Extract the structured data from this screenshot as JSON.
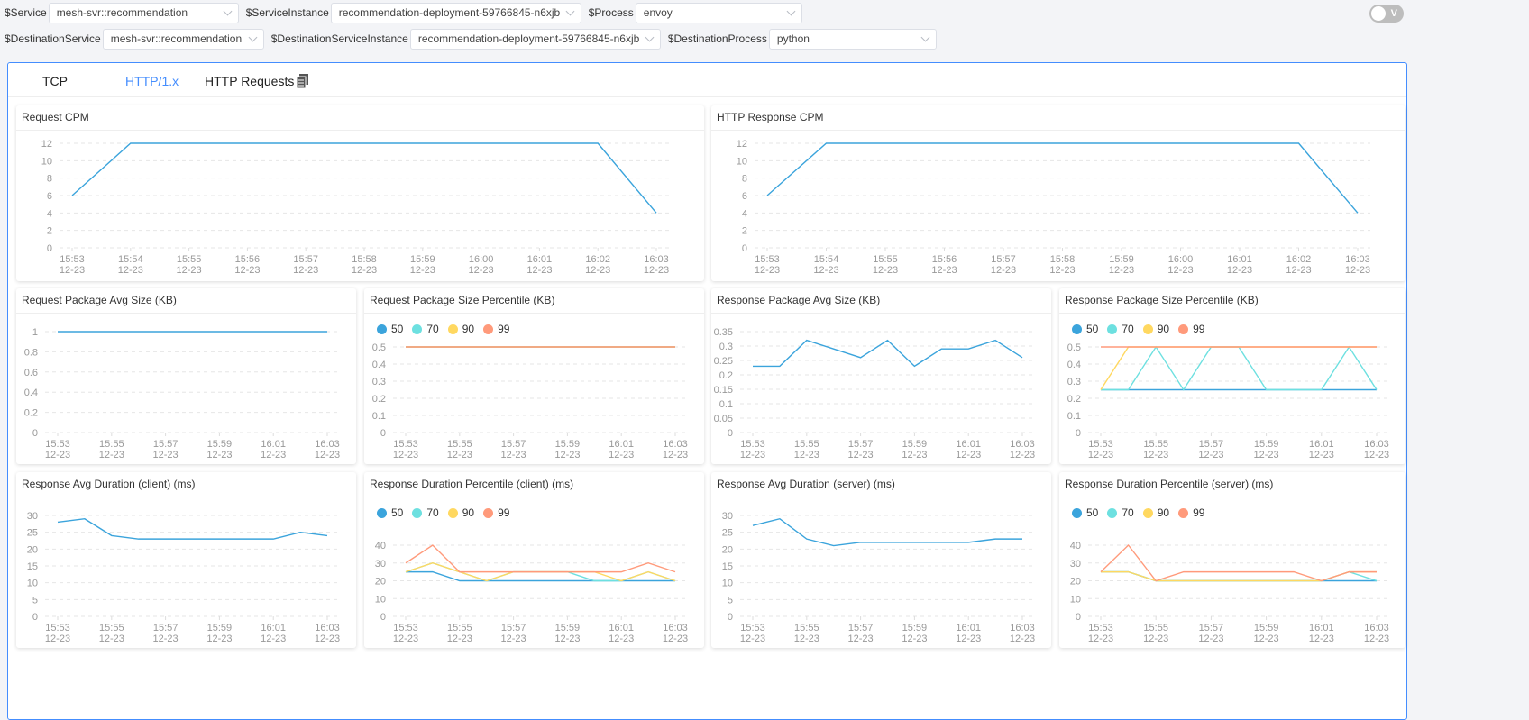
{
  "filters": {
    "row1": [
      {
        "label": "$Service",
        "value": "mesh-svr::recommendation"
      },
      {
        "label": "$ServiceInstance",
        "value": "recommendation-deployment-59766845-n6xjb"
      },
      {
        "label": "$Process",
        "value": "envoy"
      }
    ],
    "row2": [
      {
        "label": "$DestinationService",
        "value": "mesh-svr::recommendation"
      },
      {
        "label": "$DestinationServiceInstance",
        "value": "recommendation-deployment-59766845-n6xjb"
      },
      {
        "label": "$DestinationProcess",
        "value": "python"
      }
    ],
    "toggle_label": "V",
    "toggle_on": false
  },
  "tabs": [
    {
      "label": "TCP",
      "active": false
    },
    {
      "label": "HTTP/1.x",
      "active": true
    },
    {
      "label": "HTTP Requests",
      "active": false,
      "icon": "copy-icon"
    }
  ],
  "colors": {
    "accent": "#448dfe",
    "p50": "#3ba4dc",
    "p70": "#6de0e0",
    "p90": "#ffd860",
    "p99": "#ff9a7b",
    "line": "#3ba4dc"
  },
  "chart_data": [
    {
      "type": "line",
      "title": "Request CPM",
      "x": [
        "15:53",
        "15:54",
        "15:55",
        "15:56",
        "15:57",
        "15:58",
        "15:59",
        "16:00",
        "16:01",
        "16:02",
        "16:03"
      ],
      "date": "12-23",
      "ylim": [
        0,
        12
      ],
      "yticks": [
        0,
        2,
        4,
        6,
        8,
        10,
        12
      ],
      "xtick_step": 1,
      "series": [
        {
          "values": [
            6,
            12,
            12,
            12,
            12,
            12,
            12,
            12,
            12,
            12,
            4
          ]
        }
      ]
    },
    {
      "type": "line",
      "title": "HTTP Response CPM",
      "x": [
        "15:53",
        "15:54",
        "15:55",
        "15:56",
        "15:57",
        "15:58",
        "15:59",
        "16:00",
        "16:01",
        "16:02",
        "16:03"
      ],
      "date": "12-23",
      "ylim": [
        0,
        12
      ],
      "yticks": [
        0,
        2,
        4,
        6,
        8,
        10,
        12
      ],
      "xtick_step": 1,
      "series": [
        {
          "values": [
            6,
            12,
            12,
            12,
            12,
            12,
            12,
            12,
            12,
            12,
            4
          ]
        }
      ]
    },
    {
      "type": "line",
      "title": "Request Package Avg Size (KB)",
      "x": [
        "15:53",
        "15:54",
        "15:55",
        "15:56",
        "15:57",
        "15:58",
        "15:59",
        "16:00",
        "16:01",
        "16:02",
        "16:03"
      ],
      "date": "12-23",
      "ylim": [
        0,
        1
      ],
      "yticks": [
        0,
        0.2,
        0.4,
        0.6,
        0.8,
        1
      ],
      "xtick_step": 2,
      "series": [
        {
          "values": [
            1,
            1,
            1,
            1,
            1,
            1,
            1,
            1,
            1,
            1,
            1
          ]
        }
      ]
    },
    {
      "type": "line",
      "title": "Request Package Size Percentile (KB)",
      "x": [
        "15:53",
        "15:54",
        "15:55",
        "15:56",
        "15:57",
        "15:58",
        "15:59",
        "16:00",
        "16:01",
        "16:02",
        "16:03"
      ],
      "date": "12-23",
      "ylim": [
        0,
        0.5
      ],
      "yticks": [
        0,
        0.1,
        0.2,
        0.3,
        0.4,
        0.5
      ],
      "xtick_step": 2,
      "legend": "top-left",
      "series": [
        {
          "name": "50",
          "values": [
            0.5,
            0.5,
            0.5,
            0.5,
            0.5,
            0.5,
            0.5,
            0.5,
            0.5,
            0.5,
            0.5
          ]
        },
        {
          "name": "70",
          "values": [
            0.5,
            0.5,
            0.5,
            0.5,
            0.5,
            0.5,
            0.5,
            0.5,
            0.5,
            0.5,
            0.5
          ]
        },
        {
          "name": "90",
          "values": [
            0.5,
            0.5,
            0.5,
            0.5,
            0.5,
            0.5,
            0.5,
            0.5,
            0.5,
            0.5,
            0.5
          ]
        },
        {
          "name": "99",
          "values": [
            0.5,
            0.5,
            0.5,
            0.5,
            0.5,
            0.5,
            0.5,
            0.5,
            0.5,
            0.5,
            0.5
          ]
        }
      ]
    },
    {
      "type": "line",
      "title": "Response Package Avg Size (KB)",
      "x": [
        "15:53",
        "15:54",
        "15:55",
        "15:56",
        "15:57",
        "15:58",
        "15:59",
        "16:00",
        "16:01",
        "16:02",
        "16:03"
      ],
      "date": "12-23",
      "ylim": [
        0,
        0.35
      ],
      "yticks": [
        0,
        0.05,
        0.1,
        0.15,
        0.2,
        0.25,
        0.3,
        0.35
      ],
      "xtick_step": 2,
      "series": [
        {
          "values": [
            0.23,
            0.23,
            0.32,
            0.29,
            0.26,
            0.32,
            0.23,
            0.29,
            0.29,
            0.32,
            0.26
          ]
        }
      ]
    },
    {
      "type": "line",
      "title": "Response Package Size Percentile (KB)",
      "x": [
        "15:53",
        "15:54",
        "15:55",
        "15:56",
        "15:57",
        "15:58",
        "15:59",
        "16:00",
        "16:01",
        "16:02",
        "16:03"
      ],
      "date": "12-23",
      "ylim": [
        0,
        0.5
      ],
      "yticks": [
        0,
        0.1,
        0.2,
        0.3,
        0.4,
        0.5
      ],
      "xtick_step": 2,
      "legend": "top-left",
      "series": [
        {
          "name": "50",
          "values": [
            0.25,
            0.25,
            0.25,
            0.25,
            0.25,
            0.25,
            0.25,
            0.25,
            0.25,
            0.25,
            0.25
          ]
        },
        {
          "name": "70",
          "values": [
            0.25,
            0.25,
            0.5,
            0.25,
            0.5,
            0.5,
            0.25,
            0.25,
            0.25,
            0.5,
            0.25
          ]
        },
        {
          "name": "90",
          "values": [
            0.25,
            0.5,
            0.5,
            0.5,
            0.5,
            0.5,
            0.5,
            0.5,
            0.5,
            0.5,
            0.5
          ]
        },
        {
          "name": "99",
          "values": [
            0.5,
            0.5,
            0.5,
            0.5,
            0.5,
            0.5,
            0.5,
            0.5,
            0.5,
            0.5,
            0.5
          ]
        }
      ]
    },
    {
      "type": "line",
      "title": "Response Avg Duration (client) (ms)",
      "x": [
        "15:53",
        "15:54",
        "15:55",
        "15:56",
        "15:57",
        "15:58",
        "15:59",
        "16:00",
        "16:01",
        "16:02",
        "16:03"
      ],
      "date": "12-23",
      "ylim": [
        0,
        30
      ],
      "yticks": [
        0,
        5,
        10,
        15,
        20,
        25,
        30
      ],
      "xtick_step": 2,
      "series": [
        {
          "values": [
            28,
            29,
            24,
            23,
            23,
            23,
            23,
            23,
            23,
            25,
            24
          ]
        }
      ]
    },
    {
      "type": "line",
      "title": "Response Duration Percentile (client) (ms)",
      "x": [
        "15:53",
        "15:54",
        "15:55",
        "15:56",
        "15:57",
        "15:58",
        "15:59",
        "16:00",
        "16:01",
        "16:02",
        "16:03"
      ],
      "date": "12-23",
      "ylim": [
        0,
        40
      ],
      "yticks": [
        0,
        10,
        20,
        30,
        40
      ],
      "xtick_step": 2,
      "legend": "top-left",
      "series": [
        {
          "name": "50",
          "values": [
            25,
            25,
            20,
            20,
            20,
            20,
            20,
            20,
            20,
            20,
            20
          ]
        },
        {
          "name": "70",
          "values": [
            25,
            30,
            25,
            20,
            25,
            25,
            25,
            20,
            20,
            25,
            20
          ]
        },
        {
          "name": "90",
          "values": [
            25,
            30,
            25,
            20,
            25,
            25,
            25,
            25,
            20,
            25,
            20
          ]
        },
        {
          "name": "99",
          "values": [
            30,
            40,
            25,
            25,
            25,
            25,
            25,
            25,
            25,
            30,
            25
          ]
        }
      ]
    },
    {
      "type": "line",
      "title": "Response Avg Duration (server) (ms)",
      "x": [
        "15:53",
        "15:54",
        "15:55",
        "15:56",
        "15:57",
        "15:58",
        "15:59",
        "16:00",
        "16:01",
        "16:02",
        "16:03"
      ],
      "date": "12-23",
      "ylim": [
        0,
        30
      ],
      "yticks": [
        0,
        5,
        10,
        15,
        20,
        25,
        30
      ],
      "xtick_step": 2,
      "series": [
        {
          "values": [
            27,
            29,
            23,
            21,
            22,
            22,
            22,
            22,
            22,
            23,
            23
          ]
        }
      ]
    },
    {
      "type": "line",
      "title": "Response Duration Percentile (server) (ms)",
      "x": [
        "15:53",
        "15:54",
        "15:55",
        "15:56",
        "15:57",
        "15:58",
        "15:59",
        "16:00",
        "16:01",
        "16:02",
        "16:03"
      ],
      "date": "12-23",
      "ylim": [
        0,
        40
      ],
      "yticks": [
        0,
        10,
        20,
        30,
        40
      ],
      "xtick_step": 2,
      "legend": "top-left",
      "series": [
        {
          "name": "50",
          "values": [
            25,
            25,
            20,
            20,
            20,
            20,
            20,
            20,
            20,
            20,
            20
          ]
        },
        {
          "name": "70",
          "values": [
            25,
            25,
            20,
            20,
            20,
            20,
            20,
            20,
            20,
            25,
            20
          ]
        },
        {
          "name": "90",
          "values": [
            25,
            25,
            20,
            20,
            20,
            20,
            20,
            20,
            20,
            25,
            25
          ]
        },
        {
          "name": "99",
          "values": [
            25,
            40,
            20,
            25,
            25,
            25,
            25,
            25,
            20,
            25,
            25
          ]
        }
      ]
    }
  ]
}
